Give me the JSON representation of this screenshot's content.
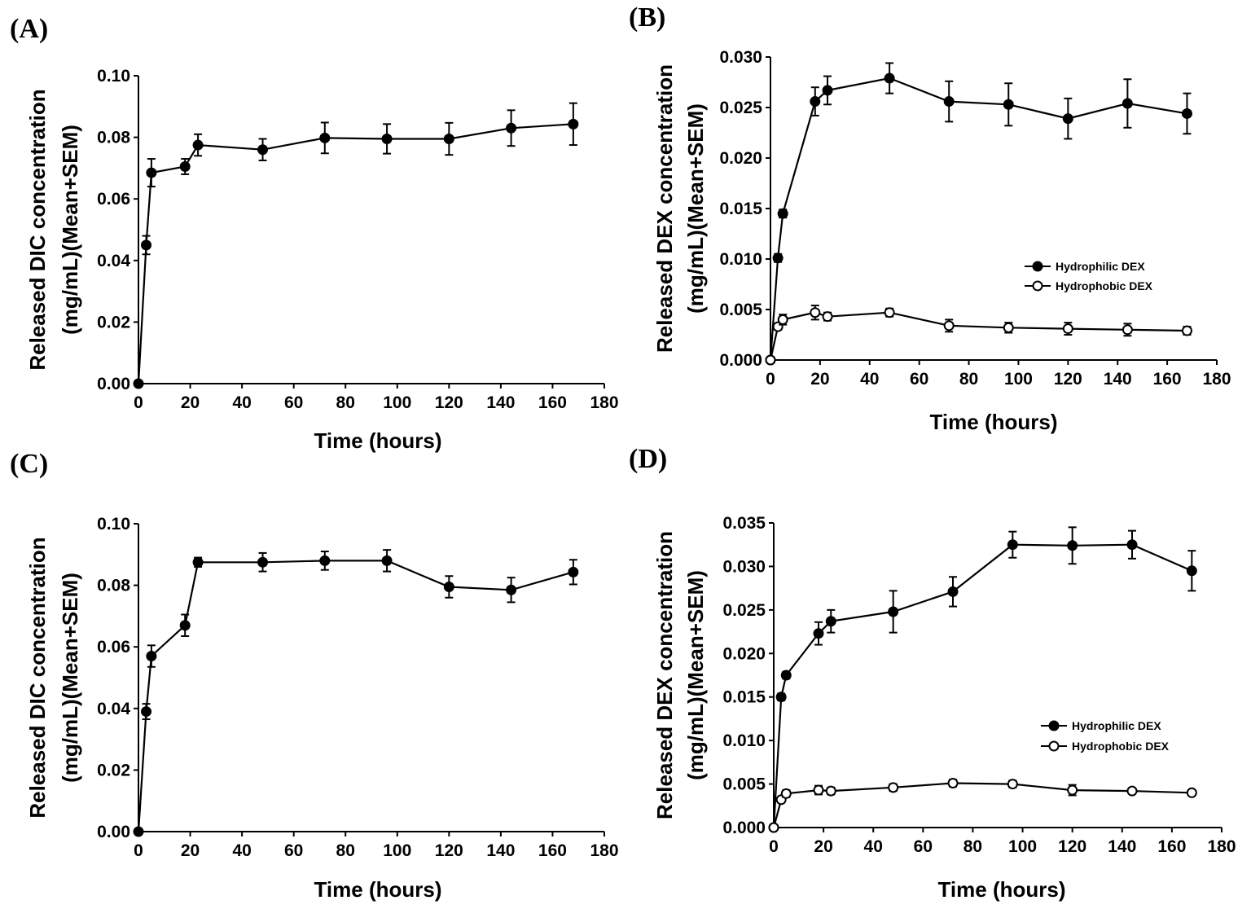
{
  "chart_data": [
    {
      "id": "A",
      "panel_label": "(A)",
      "type": "line",
      "xlabel": "Time (hours)",
      "ylabel_line1": "Released DIC concentration",
      "ylabel_line2": "(mg/mL)(Mean+SEM)",
      "xlim": [
        0,
        180
      ],
      "ylim": [
        0,
        0.1
      ],
      "xticks": [
        0,
        20,
        40,
        60,
        80,
        100,
        120,
        140,
        160,
        180
      ],
      "yticks": [
        0,
        0.02,
        0.04,
        0.06,
        0.08,
        0.1
      ],
      "ytick_decimals": 2,
      "legend": null,
      "series": [
        {
          "name": "DIC",
          "marker": "filled",
          "x": [
            0,
            3,
            5,
            18,
            23,
            48,
            72,
            96,
            120,
            144,
            168
          ],
          "y": [
            0.0,
            0.045,
            0.0685,
            0.0705,
            0.0775,
            0.076,
            0.0798,
            0.0795,
            0.0795,
            0.083,
            0.0843
          ],
          "err": [
            0,
            0.003,
            0.0045,
            0.0025,
            0.0035,
            0.0035,
            0.005,
            0.0048,
            0.0052,
            0.0058,
            0.0068
          ]
        }
      ]
    },
    {
      "id": "B",
      "panel_label": "(B)",
      "type": "line",
      "xlabel": "Time (hours)",
      "ylabel_line1": "Released DEX concentration",
      "ylabel_line2": "(mg/mL)(Mean+SEM)",
      "xlim": [
        0,
        180
      ],
      "ylim": [
        0,
        0.03
      ],
      "xticks": [
        0,
        20,
        40,
        60,
        80,
        100,
        120,
        140,
        160,
        180
      ],
      "yticks": [
        0,
        0.005,
        0.01,
        0.015,
        0.02,
        0.025,
        0.03
      ],
      "ytick_decimals": 3,
      "legend": [
        "Hydrophilic DEX",
        "Hydrophobic DEX"
      ],
      "legend_position": "center-right",
      "series": [
        {
          "name": "Hydrophilic DEX",
          "marker": "filled",
          "x": [
            0,
            3,
            5,
            18,
            23,
            48,
            72,
            96,
            120,
            144,
            168
          ],
          "y": [
            0.0,
            0.0101,
            0.0145,
            0.0256,
            0.0267,
            0.0279,
            0.0256,
            0.0253,
            0.0239,
            0.0254,
            0.0244
          ],
          "err": [
            0,
            0.0004,
            0.0004,
            0.0014,
            0.0014,
            0.0015,
            0.002,
            0.0021,
            0.002,
            0.0024,
            0.002
          ]
        },
        {
          "name": "Hydrophobic DEX",
          "marker": "open",
          "x": [
            0,
            3,
            5,
            18,
            23,
            48,
            72,
            96,
            120,
            144,
            168
          ],
          "y": [
            0.0,
            0.0033,
            0.004,
            0.0047,
            0.0043,
            0.0047,
            0.0034,
            0.0032,
            0.0031,
            0.003,
            0.0029
          ],
          "err": [
            0,
            0.0003,
            0.0005,
            0.0007,
            0.0004,
            0.0004,
            0.0006,
            0.0005,
            0.0006,
            0.0006,
            0.0004
          ]
        }
      ]
    },
    {
      "id": "C",
      "panel_label": "(C)",
      "type": "line",
      "xlabel": "Time (hours)",
      "ylabel_line1": "Released DIC concentration",
      "ylabel_line2": "(mg/mL)(Mean+SEM)",
      "xlim": [
        0,
        180
      ],
      "ylim": [
        0,
        0.1
      ],
      "xticks": [
        0,
        20,
        40,
        60,
        80,
        100,
        120,
        140,
        160,
        180
      ],
      "yticks": [
        0,
        0.02,
        0.04,
        0.06,
        0.08,
        0.1
      ],
      "ytick_decimals": 2,
      "legend": null,
      "series": [
        {
          "name": "DIC",
          "marker": "filled",
          "x": [
            0,
            3,
            5,
            18,
            23,
            48,
            72,
            96,
            120,
            144,
            168
          ],
          "y": [
            0.0,
            0.039,
            0.057,
            0.067,
            0.0875,
            0.0875,
            0.088,
            0.088,
            0.0795,
            0.0785,
            0.0843
          ],
          "err": [
            0,
            0.0025,
            0.0035,
            0.0035,
            0.0015,
            0.003,
            0.003,
            0.0035,
            0.0035,
            0.004,
            0.004
          ]
        }
      ]
    },
    {
      "id": "D",
      "panel_label": "(D)",
      "type": "line",
      "xlabel": "Time (hours)",
      "ylabel_line1": "Released DEX concentration",
      "ylabel_line2": "(mg/mL)(Mean+SEM)",
      "xlim": [
        0,
        180
      ],
      "ylim": [
        0,
        0.035
      ],
      "xticks": [
        0,
        20,
        40,
        60,
        80,
        100,
        120,
        140,
        160,
        180
      ],
      "yticks": [
        0,
        0.005,
        0.01,
        0.015,
        0.02,
        0.025,
        0.03,
        0.035
      ],
      "ytick_decimals": 3,
      "legend": [
        "Hydrophilic DEX",
        "Hydrophobic DEX"
      ],
      "legend_position": "center-right",
      "series": [
        {
          "name": "Hydrophilic DEX",
          "marker": "filled",
          "x": [
            0,
            3,
            5,
            18,
            23,
            48,
            72,
            96,
            120,
            144,
            168
          ],
          "y": [
            0.0,
            0.015,
            0.0175,
            0.0223,
            0.0237,
            0.0248,
            0.0271,
            0.0325,
            0.0324,
            0.0325,
            0.0295
          ],
          "err": [
            0,
            0.0004,
            0.0004,
            0.0013,
            0.0013,
            0.0024,
            0.0017,
            0.0015,
            0.0021,
            0.0016,
            0.0023
          ]
        },
        {
          "name": "Hydrophobic DEX",
          "marker": "open",
          "x": [
            0,
            3,
            5,
            18,
            23,
            48,
            72,
            96,
            120,
            144,
            168
          ],
          "y": [
            0.0,
            0.0032,
            0.0039,
            0.0043,
            0.0042,
            0.0046,
            0.0051,
            0.005,
            0.0043,
            0.0042,
            0.004
          ],
          "err": [
            0,
            0.0003,
            0.0004,
            0.0005,
            0.0004,
            0.0004,
            0.0004,
            0.0004,
            0.0006,
            0.0003,
            0.0003
          ]
        }
      ]
    }
  ]
}
